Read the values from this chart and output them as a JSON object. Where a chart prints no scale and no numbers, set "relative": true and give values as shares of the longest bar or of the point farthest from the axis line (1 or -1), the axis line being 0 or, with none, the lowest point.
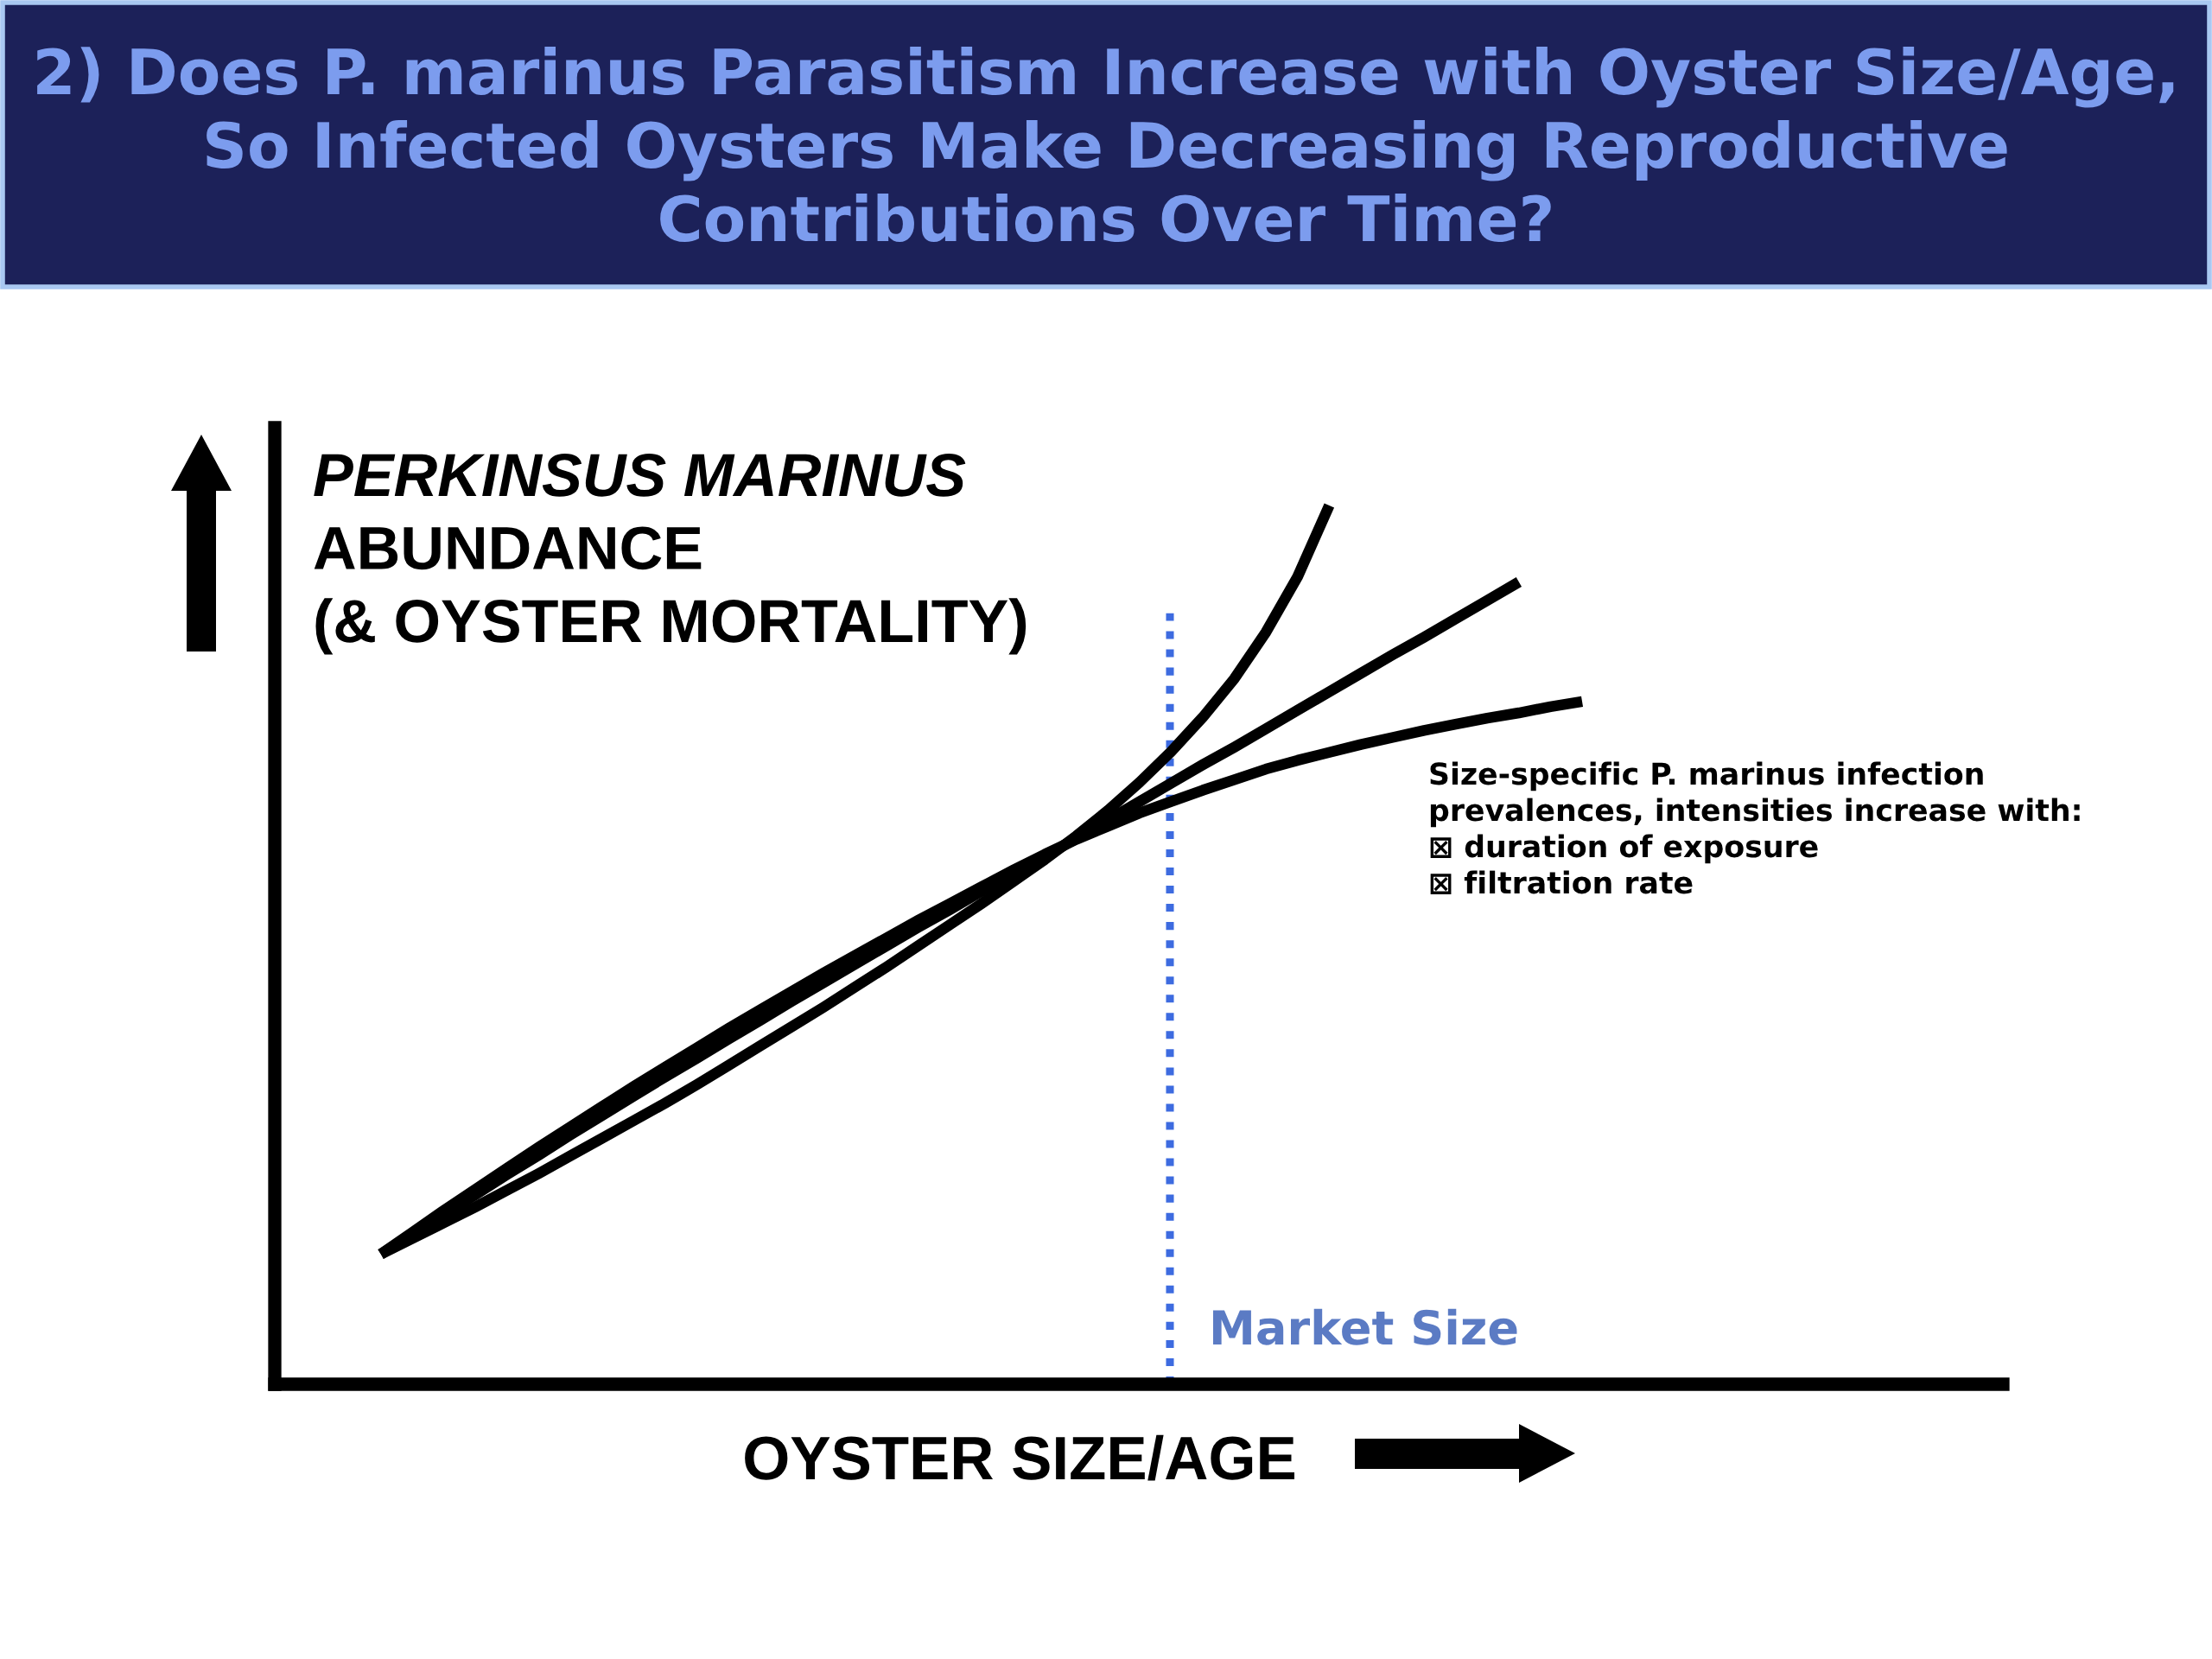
{
  "chart_data": {
    "type": "line",
    "title": "2) Does P. marinus Parasitism Increase with Oyster Size/Age,\nSo Infected Oysters Make Decreasing Reproductive\nContributions Over Time?",
    "ylabel": "PERKINSUS MARINUS\nABUNDANCE\n(& OYSTER MORTALITY)",
    "xlabel": "OYSTER SIZE/AGE",
    "annotations": [
      "Size-specific P. marinus infection\nprevalences, intensities increase with:\n⊠ duration of exposure\n⊠ filtration rate",
      "Market Size"
    ],
    "categories": [
      null,
      null,
      null,
      null,
      null,
      null,
      null,
      null,
      null,
      null,
      null,
      null,
      null,
      null,
      null,
      null,
      null,
      null,
      null,
      null,
      null,
      null,
      null,
      null,
      null,
      null,
      null,
      null,
      null,
      null,
      null,
      null,
      null,
      null,
      null,
      null,
      null,
      null,
      null
    ],
    "relative": true,
    "series": [
      {
        "color": "#000000",
        "values": [
          0.148,
          0.166,
          0.184,
          0.202,
          0.221,
          0.24,
          0.26,
          0.28,
          0.3,
          0.32,
          0.341,
          0.363,
          0.385,
          0.407,
          0.429,
          0.452,
          0.475,
          0.499,
          0.523,
          0.547,
          0.572,
          0.597,
          0.624,
          0.653,
          0.685,
          0.72,
          0.759,
          0.803,
          0.856,
          0.919,
          1.0,
          null,
          null,
          null,
          null,
          null,
          null,
          null,
          null
        ]
      },
      {
        "color": "#000000",
        "values": [
          0.148,
          0.171,
          0.194,
          0.216,
          0.239,
          0.261,
          0.284,
          0.306,
          0.328,
          0.35,
          0.371,
          0.393,
          0.414,
          0.436,
          0.457,
          0.478,
          0.499,
          0.52,
          0.54,
          0.561,
          0.581,
          0.601,
          0.621,
          0.642,
          0.663,
          0.684,
          0.705,
          0.725,
          0.746,
          0.767,
          0.788,
          0.809,
          0.83,
          0.85,
          0.871,
          0.892,
          0.913,
          null,
          null
        ]
      },
      {
        "color": "#000000",
        "values": [
          0.148,
          0.173,
          0.198,
          0.222,
          0.246,
          0.27,
          0.293,
          0.316,
          0.339,
          0.361,
          0.383,
          0.405,
          0.426,
          0.447,
          0.468,
          0.488,
          0.508,
          0.528,
          0.547,
          0.566,
          0.585,
          0.603,
          0.62,
          0.635,
          0.65,
          0.663,
          0.676,
          0.688,
          0.7,
          0.71,
          0.719,
          0.728,
          0.736,
          0.744,
          0.751,
          0.758,
          0.764,
          0.771,
          0.777
        ]
      }
    ]
  }
}
